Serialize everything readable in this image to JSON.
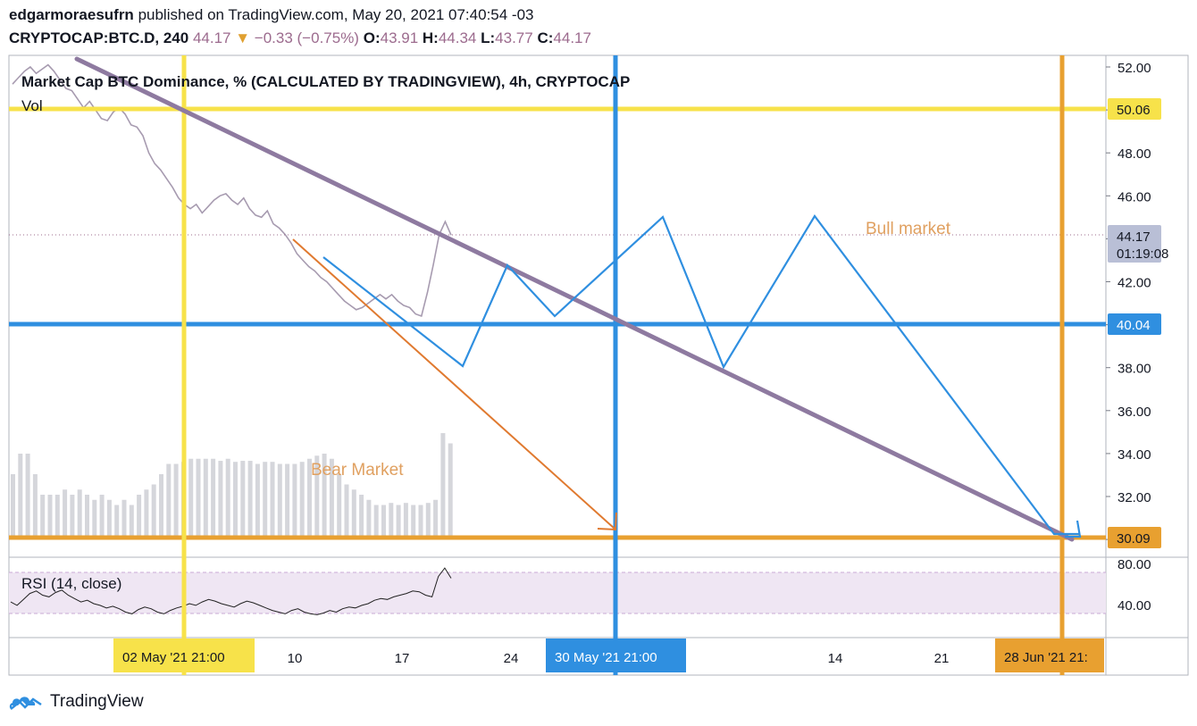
{
  "header": {
    "author": "edgarmoraesufrn",
    "published": "published on TradingView.com, May 20, 2021 07:40:54 -03",
    "symbol": "CRYPTOCAP:BTC.D, 240",
    "last": "44.17",
    "change_arrow": "▼",
    "change": "−0.33 (−0.75%)",
    "o_label": "O:",
    "o": "43.91",
    "h_label": "H:",
    "h": "44.34",
    "l_label": "L:",
    "l": "43.77",
    "c_label": "C:",
    "c": "44.17"
  },
  "footer": {
    "brand": "TradingView",
    "logo_icon": "tradingview-cloud-logo"
  },
  "chart_data": {
    "type": "line",
    "title": "Market Cap BTC Dominance, % (CALCULATED BY TRADINGVIEW), 4h, CRYPTOCAP",
    "volume_label": "Vol",
    "rsi_label": "RSI (14, close)",
    "price_ticks": [
      "52.00",
      "50.00",
      "48.00",
      "46.00",
      "44.00",
      "42.00",
      "40.00",
      "38.00",
      "36.00",
      "34.00",
      "32.00",
      "30.00"
    ],
    "rsi_ticks": [
      "80.00",
      "40.00"
    ],
    "x_ticks": [
      "10",
      "17",
      "24",
      "14",
      "21"
    ],
    "highlighted_dates": [
      {
        "label": "02 May '21   21:00",
        "color": "#f7e24a"
      },
      {
        "label": "30 May '21   21:00",
        "color": "#2f8fe0"
      },
      {
        "label": "28 Jun '21   21:",
        "color": "#e8a030"
      }
    ],
    "price_badges": [
      {
        "value": "50.06",
        "color": "#f7e24a"
      },
      {
        "value": "40.04",
        "color": "#2f8fe0"
      },
      {
        "value": "30.09",
        "color": "#e8a030"
      }
    ],
    "last_price_badge": {
      "value": "44.17",
      "countdown": "01:19:08",
      "color": "#b9bfd6"
    },
    "annotations": {
      "bear": "Bear Market",
      "bull": "Bull market"
    },
    "price_series": [
      51.2,
      51.5,
      51.8,
      52.0,
      51.7,
      51.9,
      52.1,
      51.8,
      51.4,
      51.0,
      50.9,
      50.5,
      50.1,
      50.4,
      50.0,
      49.6,
      49.5,
      49.9,
      50.1,
      49.8,
      49.3,
      49.2,
      48.8,
      48.0,
      47.5,
      47.2,
      46.8,
      46.4,
      45.9,
      45.6,
      45.4,
      45.6,
      45.2,
      45.5,
      45.8,
      46.0,
      46.1,
      45.8,
      45.6,
      45.9,
      45.4,
      45.1,
      45.0,
      45.3,
      44.7,
      44.5,
      44.2,
      43.8,
      43.3,
      43.0,
      42.7,
      42.5,
      42.2,
      42.0,
      41.7,
      41.4,
      41.1,
      40.9,
      40.7,
      40.8,
      41.0,
      41.2,
      41.4,
      41.2,
      41.4,
      41.1,
      40.9,
      40.8,
      40.5,
      40.4,
      41.5,
      42.8,
      44.2,
      44.8,
      44.17
    ],
    "volume_series": [
      0.6,
      0.8,
      0.8,
      0.6,
      0.4,
      0.4,
      0.4,
      0.45,
      0.4,
      0.45,
      0.4,
      0.35,
      0.4,
      0.35,
      0.3,
      0.35,
      0.3,
      0.4,
      0.45,
      0.5,
      0.6,
      0.7,
      0.7,
      0.72,
      0.75,
      0.75,
      0.75,
      0.75,
      0.73,
      0.75,
      0.72,
      0.73,
      0.73,
      0.7,
      0.72,
      0.72,
      0.7,
      0.7,
      0.7,
      0.72,
      0.75,
      0.78,
      0.8,
      0.75,
      0.6,
      0.5,
      0.45,
      0.4,
      0.35,
      0.3,
      0.3,
      0.32,
      0.3,
      0.32,
      0.3,
      0.3,
      0.32,
      0.35,
      1.0,
      0.9
    ],
    "rsi_series": [
      42,
      38,
      45,
      52,
      55,
      50,
      48,
      53,
      56,
      50,
      46,
      42,
      44,
      40,
      38,
      35,
      37,
      34,
      30,
      28,
      33,
      36,
      34,
      30,
      28,
      32,
      35,
      37,
      40,
      38,
      42,
      45,
      43,
      40,
      38,
      36,
      40,
      43,
      41,
      38,
      35,
      32,
      30,
      28,
      32,
      34,
      30,
      28,
      27,
      29,
      32,
      30,
      34,
      36,
      35,
      38,
      40,
      44,
      46,
      45,
      48,
      50,
      52,
      55,
      54,
      50,
      48,
      72,
      82,
      70
    ],
    "drawn_lines": {
      "purple_trend": "downward trendline",
      "blue_zigzag": "projected zigzag path",
      "orange_arrow": "bear target arrow"
    }
  }
}
